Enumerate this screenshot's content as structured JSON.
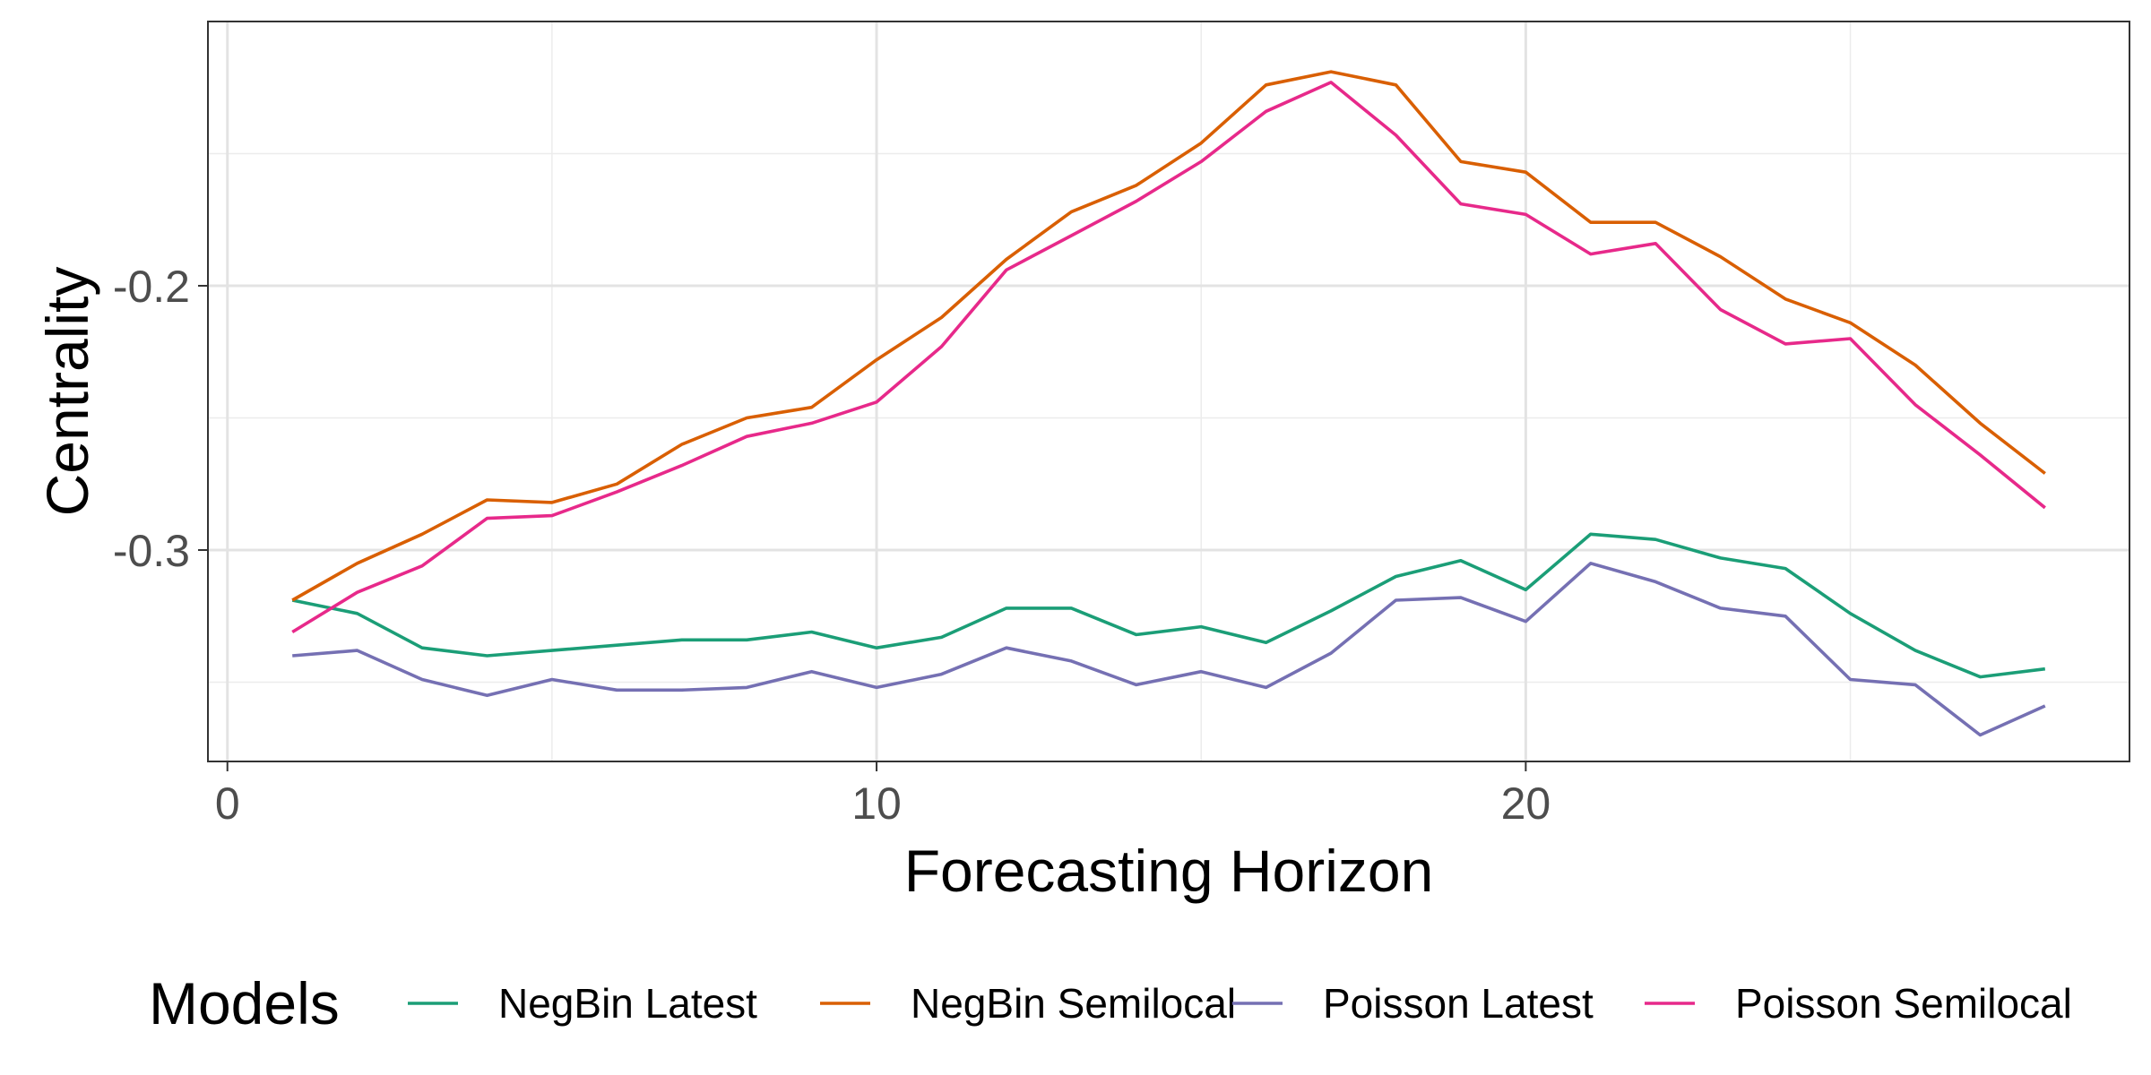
{
  "chart_data": {
    "type": "line",
    "xlabel": "Forecasting Horizon",
    "ylabel": "Centrality",
    "xlim": [
      -0.3,
      29.3
    ],
    "ylim": [
      -0.38,
      -0.1
    ],
    "x_ticks": [
      0,
      10,
      20
    ],
    "x_minor_ticks": [
      5,
      15,
      25
    ],
    "y_ticks": [
      -0.2,
      -0.3
    ],
    "y_minor_ticks": [
      -0.15,
      -0.25,
      -0.35
    ],
    "grid": true,
    "legend": {
      "title": "Models",
      "position": "bottom",
      "entries": [
        "NegBin Latest",
        "NegBin Semilocal",
        "Poisson Latest",
        "Poisson Semilocal"
      ]
    },
    "x": [
      1,
      2,
      3,
      4,
      5,
      6,
      7,
      8,
      9,
      10,
      11,
      12,
      13,
      14,
      15,
      16,
      17,
      18,
      19,
      20,
      21,
      22,
      23,
      24,
      25,
      26,
      27,
      28
    ],
    "series": [
      {
        "name": "NegBin Latest",
        "color": "#1b9e77",
        "values": [
          -0.319,
          -0.324,
          -0.337,
          -0.34,
          -0.338,
          -0.336,
          -0.334,
          -0.334,
          -0.331,
          -0.337,
          -0.333,
          -0.322,
          -0.322,
          -0.332,
          -0.329,
          -0.335,
          -0.323,
          -0.31,
          -0.304,
          -0.315,
          -0.294,
          -0.296,
          -0.303,
          -0.307,
          -0.324,
          -0.338,
          -0.348,
          -0.345
        ]
      },
      {
        "name": "NegBin Semilocal",
        "color": "#d95f02",
        "values": [
          -0.319,
          -0.305,
          -0.294,
          -0.281,
          -0.282,
          -0.275,
          -0.26,
          -0.25,
          -0.246,
          -0.228,
          -0.212,
          -0.19,
          -0.172,
          -0.162,
          -0.146,
          -0.124,
          -0.119,
          -0.124,
          -0.153,
          -0.157,
          -0.176,
          -0.176,
          -0.189,
          -0.205,
          -0.214,
          -0.23,
          -0.252,
          -0.271
        ]
      },
      {
        "name": "Poisson Latest",
        "color": "#7570b3",
        "values": [
          -0.34,
          -0.338,
          -0.349,
          -0.355,
          -0.349,
          -0.353,
          -0.353,
          -0.352,
          -0.346,
          -0.352,
          -0.347,
          -0.337,
          -0.342,
          -0.351,
          -0.346,
          -0.352,
          -0.339,
          -0.319,
          -0.318,
          -0.327,
          -0.305,
          -0.312,
          -0.322,
          -0.325,
          -0.349,
          -0.351,
          -0.37,
          -0.359
        ]
      },
      {
        "name": "Poisson Semilocal",
        "color": "#e7298a",
        "values": [
          -0.331,
          -0.316,
          -0.306,
          -0.288,
          -0.287,
          -0.278,
          -0.268,
          -0.257,
          -0.252,
          -0.244,
          -0.223,
          -0.194,
          -0.181,
          -0.168,
          -0.153,
          -0.134,
          -0.123,
          -0.143,
          -0.169,
          -0.173,
          -0.188,
          -0.184,
          -0.209,
          -0.222,
          -0.22,
          -0.245,
          -0.264,
          -0.284
        ]
      }
    ]
  }
}
